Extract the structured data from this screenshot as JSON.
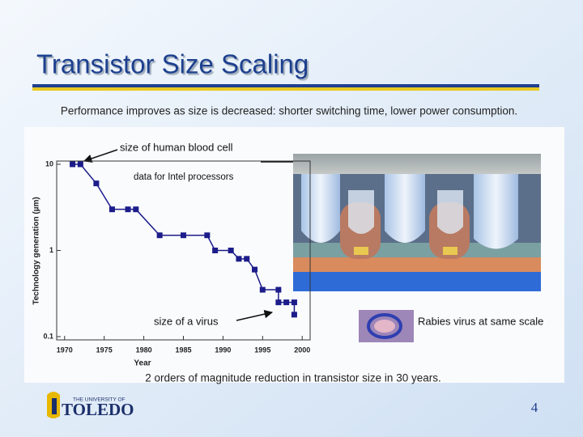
{
  "slide": {
    "title": "Transistor Size Scaling",
    "subtitle": "Performance improves as size is decreased: shorter switching time, lower power consumption.",
    "caption": "2 orders of magnitude reduction in transistor size in 30 years.",
    "page_number": 4,
    "logo": {
      "line1": "THE UNIVERSITY OF",
      "line2": "TOLEDO"
    }
  },
  "chart_data": {
    "type": "line",
    "log_y": true,
    "color": "#1c1c8a",
    "xlabel": "Year",
    "ylabel": "Technology generation (µm)",
    "x": [
      1971,
      1972,
      1974,
      1976,
      1978,
      1979,
      1982,
      1985,
      1988,
      1989,
      1991,
      1992,
      1993,
      1994,
      1995,
      1997,
      1997,
      1998,
      1999,
      1999
    ],
    "values": [
      10,
      10,
      6,
      3,
      3,
      3,
      1.5,
      1.5,
      1.5,
      1,
      1,
      0.8,
      0.8,
      0.6,
      0.35,
      0.35,
      0.25,
      0.25,
      0.25,
      0.18
    ],
    "xlim": [
      1969,
      2001
    ],
    "xticks": [
      1970,
      1975,
      1980,
      1985,
      1990,
      1995,
      2000
    ],
    "ylim": [
      0.1,
      10
    ],
    "yticks": [
      0.1,
      1,
      10
    ],
    "annotations": [
      "size of human blood cell",
      "data for Intel processors",
      "size of a virus",
      "Rabies virus at same scale"
    ]
  }
}
